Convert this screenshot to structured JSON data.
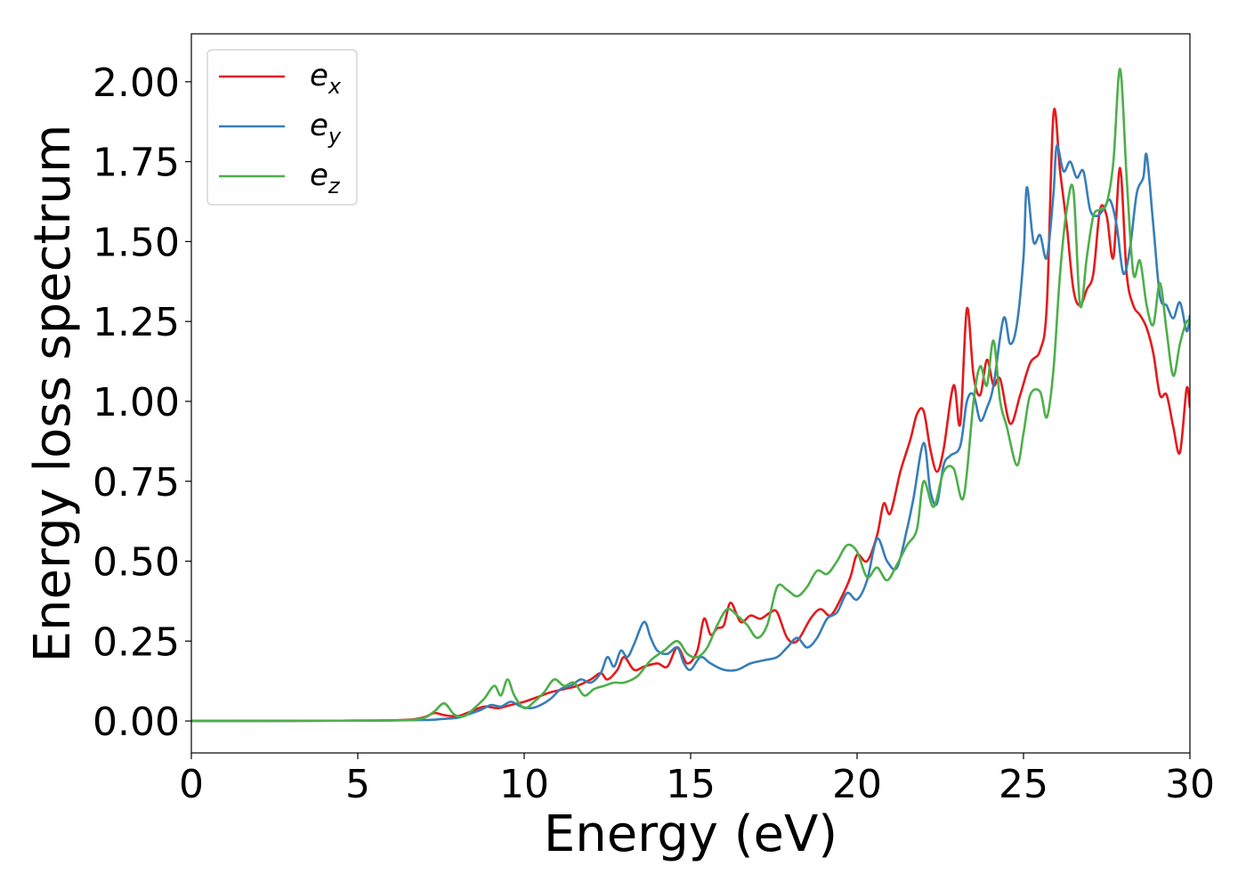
{
  "chart_data": {
    "type": "line",
    "xlabel": "Energy (eV)",
    "ylabel": "Energy loss spectrum",
    "xlim": [
      0,
      30
    ],
    "ylim": [
      -0.1,
      2.15
    ],
    "xticks": [
      0,
      5,
      10,
      15,
      20,
      25,
      30
    ],
    "xtick_labels": [
      "0",
      "5",
      "10",
      "15",
      "20",
      "25",
      "30"
    ],
    "yticks": [
      0,
      0.25,
      0.5,
      0.75,
      1.0,
      1.25,
      1.5,
      1.75,
      2.0
    ],
    "ytick_labels": [
      "0.00",
      "0.25",
      "0.50",
      "0.75",
      "1.00",
      "1.25",
      "1.50",
      "1.75",
      "2.00"
    ],
    "grid": false,
    "legend_position": "top-left",
    "series": [
      {
        "name": "e",
        "sub": "x",
        "color": "#e41a1c",
        "points": [
          [
            0,
            0
          ],
          [
            5,
            0.001
          ],
          [
            6.5,
            0.004
          ],
          [
            7.0,
            0.012
          ],
          [
            7.3,
            0.025
          ],
          [
            7.6,
            0.018
          ],
          [
            8.0,
            0.015
          ],
          [
            8.4,
            0.03
          ],
          [
            8.8,
            0.045
          ],
          [
            9.2,
            0.04
          ],
          [
            9.6,
            0.05
          ],
          [
            10.0,
            0.06
          ],
          [
            10.4,
            0.075
          ],
          [
            10.8,
            0.09
          ],
          [
            11.2,
            0.1
          ],
          [
            11.6,
            0.11
          ],
          [
            12.0,
            0.13
          ],
          [
            12.3,
            0.15
          ],
          [
            12.5,
            0.13
          ],
          [
            12.8,
            0.16
          ],
          [
            13.0,
            0.2
          ],
          [
            13.3,
            0.16
          ],
          [
            13.6,
            0.17
          ],
          [
            14.0,
            0.18
          ],
          [
            14.3,
            0.17
          ],
          [
            14.6,
            0.23
          ],
          [
            14.9,
            0.18
          ],
          [
            15.2,
            0.22
          ],
          [
            15.4,
            0.32
          ],
          [
            15.6,
            0.27
          ],
          [
            15.8,
            0.29
          ],
          [
            16.0,
            0.3
          ],
          [
            16.2,
            0.37
          ],
          [
            16.5,
            0.31
          ],
          [
            16.8,
            0.33
          ],
          [
            17.1,
            0.32
          ],
          [
            17.4,
            0.34
          ],
          [
            17.6,
            0.34
          ],
          [
            17.9,
            0.26
          ],
          [
            18.2,
            0.25
          ],
          [
            18.6,
            0.32
          ],
          [
            18.9,
            0.35
          ],
          [
            19.2,
            0.33
          ],
          [
            19.5,
            0.38
          ],
          [
            19.8,
            0.45
          ],
          [
            20.0,
            0.52
          ],
          [
            20.3,
            0.5
          ],
          [
            20.6,
            0.58
          ],
          [
            20.8,
            0.68
          ],
          [
            21.0,
            0.65
          ],
          [
            21.3,
            0.78
          ],
          [
            21.6,
            0.88
          ],
          [
            21.8,
            0.96
          ],
          [
            22.0,
            0.97
          ],
          [
            22.2,
            0.85
          ],
          [
            22.4,
            0.78
          ],
          [
            22.6,
            0.85
          ],
          [
            22.9,
            1.05
          ],
          [
            23.1,
            0.93
          ],
          [
            23.3,
            1.29
          ],
          [
            23.5,
            1.08
          ],
          [
            23.7,
            1.02
          ],
          [
            23.9,
            1.13
          ],
          [
            24.1,
            1.05
          ],
          [
            24.3,
            1.07
          ],
          [
            24.6,
            0.93
          ],
          [
            24.9,
            1.02
          ],
          [
            25.2,
            1.12
          ],
          [
            25.5,
            1.16
          ],
          [
            25.7,
            1.3
          ],
          [
            25.9,
            1.9
          ],
          [
            26.1,
            1.72
          ],
          [
            26.3,
            1.55
          ],
          [
            26.5,
            1.35
          ],
          [
            26.7,
            1.3
          ],
          [
            26.9,
            1.35
          ],
          [
            27.1,
            1.4
          ],
          [
            27.3,
            1.6
          ],
          [
            27.5,
            1.58
          ],
          [
            27.7,
            1.45
          ],
          [
            27.9,
            1.73
          ],
          [
            28.1,
            1.4
          ],
          [
            28.3,
            1.3
          ],
          [
            28.5,
            1.27
          ],
          [
            28.7,
            1.23
          ],
          [
            28.9,
            1.15
          ],
          [
            29.1,
            1.02
          ],
          [
            29.3,
            1.02
          ],
          [
            29.5,
            0.92
          ],
          [
            29.7,
            0.84
          ],
          [
            29.9,
            1.04
          ],
          [
            30.0,
            0.98
          ]
        ]
      },
      {
        "name": "e",
        "sub": "y",
        "color": "#377eb8",
        "points": [
          [
            0,
            0
          ],
          [
            5,
            0.001
          ],
          [
            7.0,
            0.003
          ],
          [
            7.5,
            0.006
          ],
          [
            8.0,
            0.01
          ],
          [
            8.3,
            0.02
          ],
          [
            8.7,
            0.035
          ],
          [
            9.0,
            0.05
          ],
          [
            9.3,
            0.045
          ],
          [
            9.6,
            0.06
          ],
          [
            9.9,
            0.045
          ],
          [
            10.2,
            0.04
          ],
          [
            10.5,
            0.05
          ],
          [
            10.8,
            0.07
          ],
          [
            11.1,
            0.1
          ],
          [
            11.4,
            0.11
          ],
          [
            11.7,
            0.13
          ],
          [
            12.0,
            0.12
          ],
          [
            12.3,
            0.15
          ],
          [
            12.5,
            0.2
          ],
          [
            12.7,
            0.17
          ],
          [
            12.9,
            0.22
          ],
          [
            13.1,
            0.2
          ],
          [
            13.3,
            0.24
          ],
          [
            13.6,
            0.31
          ],
          [
            13.8,
            0.26
          ],
          [
            14.0,
            0.22
          ],
          [
            14.3,
            0.21
          ],
          [
            14.6,
            0.23
          ],
          [
            14.8,
            0.18
          ],
          [
            15.0,
            0.16
          ],
          [
            15.3,
            0.2
          ],
          [
            15.6,
            0.18
          ],
          [
            16.0,
            0.16
          ],
          [
            16.4,
            0.16
          ],
          [
            16.8,
            0.18
          ],
          [
            17.2,
            0.19
          ],
          [
            17.6,
            0.2
          ],
          [
            17.9,
            0.23
          ],
          [
            18.2,
            0.26
          ],
          [
            18.5,
            0.23
          ],
          [
            18.8,
            0.26
          ],
          [
            19.1,
            0.32
          ],
          [
            19.4,
            0.34
          ],
          [
            19.7,
            0.4
          ],
          [
            20.0,
            0.38
          ],
          [
            20.3,
            0.44
          ],
          [
            20.6,
            0.57
          ],
          [
            20.9,
            0.5
          ],
          [
            21.2,
            0.48
          ],
          [
            21.5,
            0.6
          ],
          [
            21.7,
            0.7
          ],
          [
            22.0,
            0.87
          ],
          [
            22.2,
            0.72
          ],
          [
            22.4,
            0.68
          ],
          [
            22.6,
            0.8
          ],
          [
            22.8,
            0.83
          ],
          [
            23.1,
            0.86
          ],
          [
            23.3,
            1.0
          ],
          [
            23.5,
            1.02
          ],
          [
            23.7,
            0.94
          ],
          [
            23.9,
            0.98
          ],
          [
            24.1,
            1.05
          ],
          [
            24.4,
            1.26
          ],
          [
            24.6,
            1.18
          ],
          [
            24.8,
            1.24
          ],
          [
            25.0,
            1.45
          ],
          [
            25.1,
            1.67
          ],
          [
            25.3,
            1.5
          ],
          [
            25.5,
            1.52
          ],
          [
            25.7,
            1.45
          ],
          [
            25.9,
            1.65
          ],
          [
            26.0,
            1.8
          ],
          [
            26.2,
            1.72
          ],
          [
            26.4,
            1.75
          ],
          [
            26.6,
            1.7
          ],
          [
            26.8,
            1.72
          ],
          [
            27.0,
            1.6
          ],
          [
            27.2,
            1.58
          ],
          [
            27.4,
            1.6
          ],
          [
            27.6,
            1.63
          ],
          [
            27.8,
            1.55
          ],
          [
            28.0,
            1.4
          ],
          [
            28.2,
            1.48
          ],
          [
            28.4,
            1.65
          ],
          [
            28.6,
            1.7
          ],
          [
            28.7,
            1.77
          ],
          [
            28.9,
            1.55
          ],
          [
            29.1,
            1.33
          ],
          [
            29.3,
            1.3
          ],
          [
            29.5,
            1.26
          ],
          [
            29.7,
            1.31
          ],
          [
            29.9,
            1.22
          ],
          [
            30.0,
            1.27
          ]
        ]
      },
      {
        "name": "e",
        "sub": "z",
        "color": "#4daf4a",
        "points": [
          [
            0,
            0
          ],
          [
            5,
            0.001
          ],
          [
            6.5,
            0.003
          ],
          [
            7.0,
            0.01
          ],
          [
            7.3,
            0.03
          ],
          [
            7.6,
            0.055
          ],
          [
            7.9,
            0.02
          ],
          [
            8.2,
            0.015
          ],
          [
            8.5,
            0.04
          ],
          [
            8.8,
            0.07
          ],
          [
            9.1,
            0.11
          ],
          [
            9.3,
            0.08
          ],
          [
            9.5,
            0.13
          ],
          [
            9.7,
            0.08
          ],
          [
            10.0,
            0.04
          ],
          [
            10.3,
            0.06
          ],
          [
            10.6,
            0.09
          ],
          [
            10.9,
            0.13
          ],
          [
            11.2,
            0.11
          ],
          [
            11.5,
            0.12
          ],
          [
            11.8,
            0.08
          ],
          [
            12.1,
            0.1
          ],
          [
            12.4,
            0.11
          ],
          [
            12.7,
            0.12
          ],
          [
            13.0,
            0.12
          ],
          [
            13.4,
            0.14
          ],
          [
            13.8,
            0.19
          ],
          [
            14.2,
            0.22
          ],
          [
            14.6,
            0.25
          ],
          [
            14.9,
            0.21
          ],
          [
            15.2,
            0.2
          ],
          [
            15.5,
            0.23
          ],
          [
            15.8,
            0.3
          ],
          [
            16.1,
            0.35
          ],
          [
            16.4,
            0.33
          ],
          [
            16.7,
            0.3
          ],
          [
            17.0,
            0.26
          ],
          [
            17.3,
            0.3
          ],
          [
            17.6,
            0.42
          ],
          [
            17.9,
            0.41
          ],
          [
            18.2,
            0.39
          ],
          [
            18.5,
            0.42
          ],
          [
            18.8,
            0.47
          ],
          [
            19.1,
            0.46
          ],
          [
            19.4,
            0.5
          ],
          [
            19.7,
            0.55
          ],
          [
            20.0,
            0.53
          ],
          [
            20.3,
            0.45
          ],
          [
            20.6,
            0.48
          ],
          [
            20.9,
            0.44
          ],
          [
            21.2,
            0.49
          ],
          [
            21.5,
            0.55
          ],
          [
            21.8,
            0.6
          ],
          [
            22.0,
            0.75
          ],
          [
            22.3,
            0.67
          ],
          [
            22.6,
            0.78
          ],
          [
            22.9,
            0.79
          ],
          [
            23.2,
            0.7
          ],
          [
            23.5,
            1.0
          ],
          [
            23.7,
            1.11
          ],
          [
            23.9,
            1.05
          ],
          [
            24.1,
            1.19
          ],
          [
            24.3,
            1.0
          ],
          [
            24.5,
            0.92
          ],
          [
            24.8,
            0.8
          ],
          [
            25.0,
            0.9
          ],
          [
            25.2,
            1.02
          ],
          [
            25.5,
            1.03
          ],
          [
            25.7,
            0.95
          ],
          [
            25.9,
            1.1
          ],
          [
            26.1,
            1.4
          ],
          [
            26.3,
            1.6
          ],
          [
            26.5,
            1.66
          ],
          [
            26.7,
            1.3
          ],
          [
            26.9,
            1.45
          ],
          [
            27.1,
            1.58
          ],
          [
            27.3,
            1.6
          ],
          [
            27.5,
            1.62
          ],
          [
            27.7,
            1.75
          ],
          [
            27.9,
            2.04
          ],
          [
            28.1,
            1.7
          ],
          [
            28.3,
            1.4
          ],
          [
            28.5,
            1.44
          ],
          [
            28.7,
            1.3
          ],
          [
            28.9,
            1.24
          ],
          [
            29.1,
            1.37
          ],
          [
            29.3,
            1.22
          ],
          [
            29.5,
            1.08
          ],
          [
            29.7,
            1.18
          ],
          [
            29.9,
            1.25
          ],
          [
            30.0,
            1.24
          ]
        ]
      }
    ]
  }
}
